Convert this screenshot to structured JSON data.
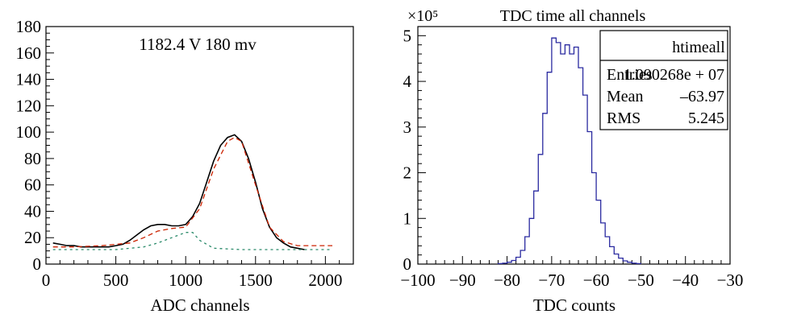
{
  "chart_data": [
    {
      "type": "line",
      "annotation": "1182.4 V 180 mv",
      "xlabel": "ADC channels",
      "ylabel": "",
      "xlim": [
        0,
        2200
      ],
      "ylim": [
        0,
        180
      ],
      "xticks": [
        "0",
        "500",
        "1000",
        "1500",
        "2000"
      ],
      "yticks": [
        "0",
        "20",
        "40",
        "60",
        "80",
        "100",
        "120",
        "140",
        "160",
        "180"
      ],
      "series": [
        {
          "color": "#000000",
          "x": [
            50,
            100,
            150,
            200,
            250,
            300,
            350,
            400,
            450,
            500,
            550,
            600,
            650,
            700,
            750,
            800,
            850,
            900,
            950,
            1000,
            1050,
            1100,
            1150,
            1200,
            1250,
            1300,
            1350,
            1400,
            1450,
            1500,
            1550,
            1600,
            1650,
            1700,
            1750,
            1800,
            1850
          ],
          "y": [
            16,
            15,
            14,
            14,
            13,
            13,
            13,
            13,
            13,
            14,
            15,
            18,
            22,
            26,
            29,
            30,
            30,
            29,
            29,
            30,
            36,
            46,
            62,
            78,
            90,
            96,
            98,
            93,
            80,
            62,
            42,
            28,
            20,
            16,
            13,
            12,
            11
          ]
        },
        {
          "color": "#cc2200",
          "x": [
            50,
            200,
            400,
            600,
            700,
            800,
            900,
            1000,
            1100,
            1200,
            1300,
            1350,
            1400,
            1500,
            1600,
            1700,
            1800,
            2050
          ],
          "y": [
            13,
            13,
            14,
            16,
            20,
            25,
            27,
            28,
            42,
            72,
            93,
            96,
            93,
            60,
            28,
            17,
            14,
            14
          ]
        },
        {
          "color": "#2a8a6a",
          "x": [
            50,
            500,
            700,
            800,
            900,
            1000,
            1050,
            1100,
            1200,
            1400,
            1700,
            2050
          ],
          "y": [
            11,
            11,
            13,
            16,
            20,
            24,
            24,
            18,
            12,
            11,
            11,
            11
          ]
        }
      ]
    },
    {
      "type": "bar",
      "title": "TDC time all channels",
      "exponent": "×10⁵",
      "xlabel": "TDC counts",
      "xlim": [
        -100,
        -30
      ],
      "ylim": [
        0,
        5.2
      ],
      "xticks": [
        "−100",
        "−90",
        "−80",
        "−70",
        "−60",
        "−50",
        "−40",
        "−30"
      ],
      "yticks": [
        "0",
        "1",
        "2",
        "3",
        "4",
        "5"
      ],
      "bin_width": 1,
      "bin_start": -82,
      "values": [
        0.01,
        0.02,
        0.04,
        0.08,
        0.15,
        0.3,
        0.6,
        1.0,
        1.6,
        2.4,
        3.3,
        4.2,
        4.95,
        4.85,
        4.6,
        4.8,
        4.6,
        4.75,
        4.3,
        3.7,
        2.9,
        2.0,
        1.4,
        0.9,
        0.6,
        0.38,
        0.22,
        0.13,
        0.07,
        0.04,
        0.02,
        0.01
      ],
      "color": "#2a2aa0",
      "stats": {
        "name": "htimeall",
        "rows": [
          {
            "label": "Entries",
            "value": "1.090268e + 07"
          },
          {
            "label": "Mean",
            "value": "–63.97"
          },
          {
            "label": "RMS",
            "value": "5.245"
          }
        ]
      }
    }
  ]
}
